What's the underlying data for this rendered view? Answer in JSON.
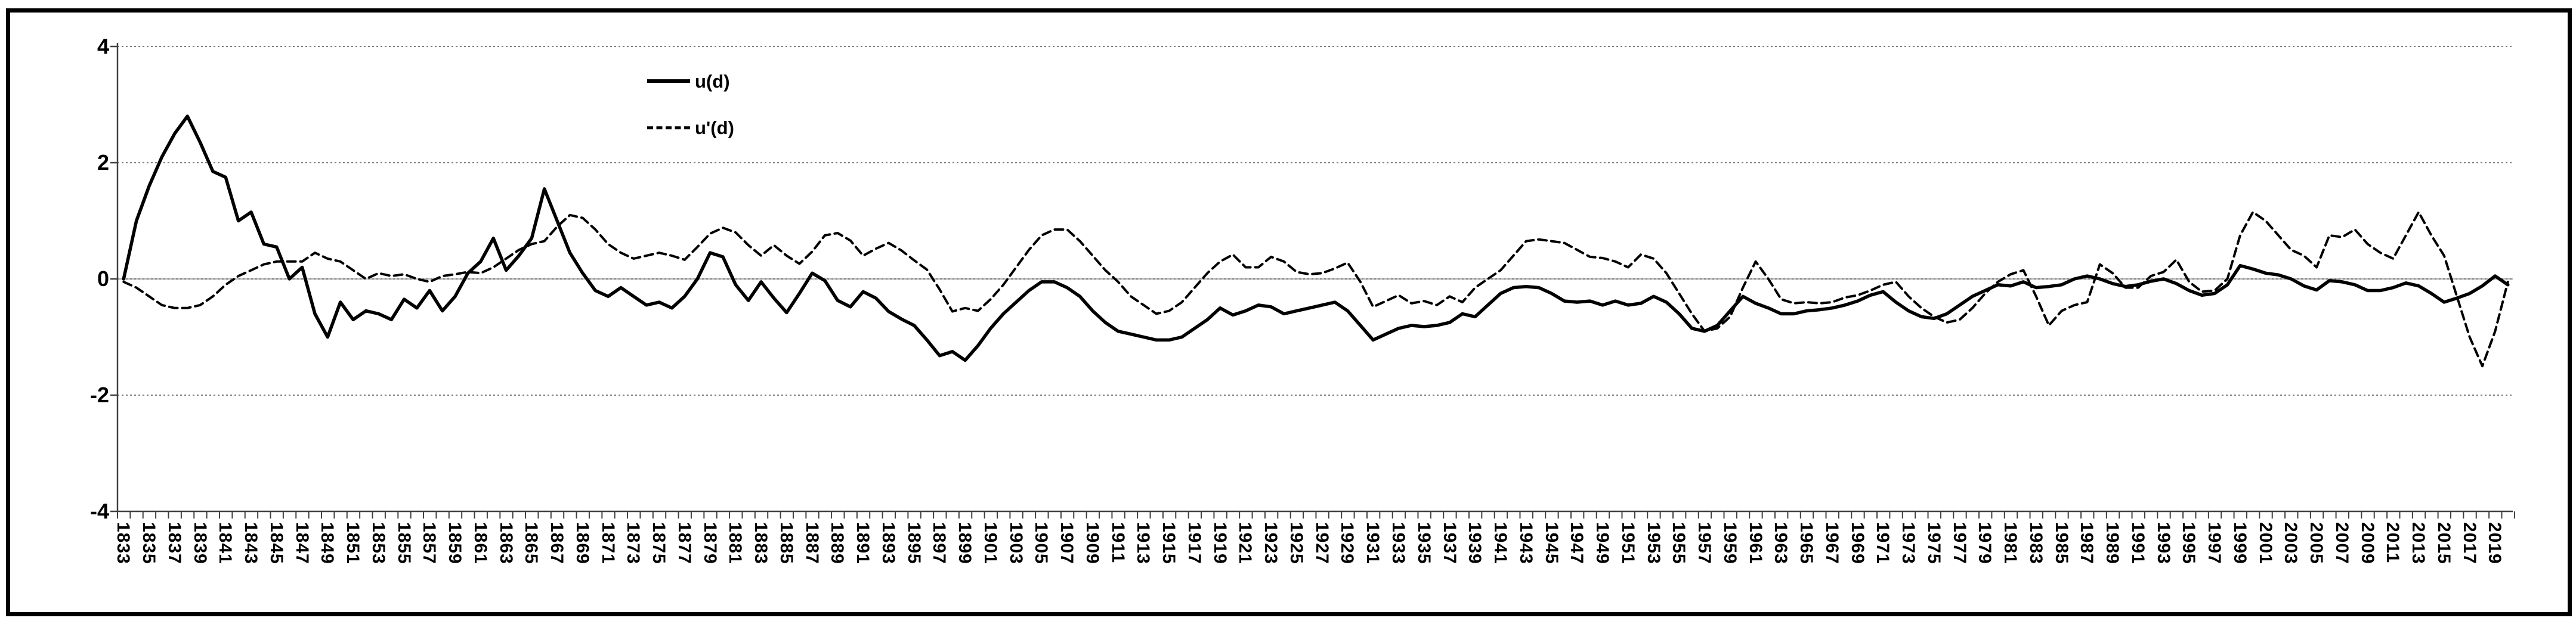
{
  "chart_data": {
    "type": "line",
    "title": "",
    "xlabel": "",
    "ylabel": "",
    "ylim": [
      -4,
      4
    ],
    "y_ticks": [
      4,
      2,
      0,
      -2,
      -4
    ],
    "y_gridlines": [
      4,
      2,
      0,
      -2
    ],
    "grid": "horizontal-dotted",
    "legend_position": "top-center-left",
    "x_start": 1833,
    "x_end": 2020,
    "x_step": 1,
    "x_tick_labels": [
      "1833",
      "1835",
      "1837",
      "1839",
      "1841",
      "1843",
      "1845",
      "1847",
      "1849",
      "1851",
      "1853",
      "1855",
      "1857",
      "1859",
      "1861",
      "1863",
      "1865",
      "1867",
      "1869",
      "1871",
      "1873",
      "1875",
      "1877",
      "1879",
      "1881",
      "1883",
      "1885",
      "1887",
      "1889",
      "1891",
      "1893",
      "1895",
      "1897",
      "1899",
      "1901",
      "1903",
      "1905",
      "1907",
      "1909",
      "1911",
      "1913",
      "1915",
      "1917",
      "1919",
      "1921",
      "1923",
      "1925",
      "1927",
      "1929",
      "1931",
      "1933",
      "1935",
      "1937",
      "1939",
      "1941",
      "1943",
      "1945",
      "1947",
      "1949",
      "1951",
      "1953",
      "1955",
      "1957",
      "1959",
      "1961",
      "1963",
      "1965",
      "1967",
      "1969",
      "1971",
      "1973",
      "1975",
      "1977",
      "1979",
      "1981",
      "1983",
      "1985",
      "1987",
      "1989",
      "1991",
      "1993",
      "1995",
      "1997",
      "1999",
      "2001",
      "2003",
      "2005",
      "2007",
      "2009",
      "2011",
      "2013",
      "2015",
      "2017",
      "2019"
    ],
    "series": [
      {
        "name": "u(d)",
        "style": "solid",
        "color": "#000000",
        "values": [
          0.0,
          1.0,
          1.6,
          2.1,
          2.5,
          2.8,
          2.35,
          1.85,
          1.75,
          1.0,
          1.15,
          0.6,
          0.55,
          0.0,
          0.2,
          -0.6,
          -1.0,
          -0.4,
          -0.7,
          -0.55,
          -0.6,
          -0.7,
          -0.35,
          -0.5,
          -0.2,
          -0.55,
          -0.3,
          0.1,
          0.3,
          0.7,
          0.15,
          0.4,
          0.7,
          1.55,
          1.0,
          0.45,
          0.1,
          -0.2,
          -0.3,
          -0.15,
          -0.3,
          -0.45,
          -0.4,
          -0.5,
          -0.3,
          0.0,
          0.45,
          0.38,
          -0.1,
          -0.37,
          -0.05,
          -0.33,
          -0.58,
          -0.25,
          0.1,
          -0.03,
          -0.37,
          -0.48,
          -0.22,
          -0.33,
          -0.56,
          -0.69,
          -0.8,
          -1.05,
          -1.32,
          -1.25,
          -1.4,
          -1.15,
          -0.85,
          -0.6,
          -0.4,
          -0.2,
          -0.05,
          -0.05,
          -0.15,
          -0.3,
          -0.55,
          -0.75,
          -0.9,
          -0.95,
          -1.0,
          -1.05,
          -1.05,
          -1.0,
          -0.85,
          -0.7,
          -0.5,
          -0.62,
          -0.55,
          -0.45,
          -0.48,
          -0.6,
          -0.55,
          -0.5,
          -0.45,
          -0.4,
          -0.55,
          -0.8,
          -1.05,
          -0.95,
          -0.85,
          -0.8,
          -0.82,
          -0.8,
          -0.75,
          -0.6,
          -0.65,
          -0.45,
          -0.25,
          -0.15,
          -0.13,
          -0.15,
          -0.25,
          -0.38,
          -0.4,
          -0.38,
          -0.45,
          -0.38,
          -0.45,
          -0.42,
          -0.3,
          -0.4,
          -0.6,
          -0.85,
          -0.9,
          -0.8,
          -0.55,
          -0.3,
          -0.42,
          -0.5,
          -0.6,
          -0.6,
          -0.55,
          -0.53,
          -0.5,
          -0.45,
          -0.38,
          -0.28,
          -0.22,
          -0.4,
          -0.55,
          -0.65,
          -0.68,
          -0.6,
          -0.45,
          -0.3,
          -0.2,
          -0.1,
          -0.12,
          -0.05,
          -0.15,
          -0.13,
          -0.1,
          0.0,
          0.05,
          0.0,
          -0.08,
          -0.13,
          -0.1,
          -0.04,
          0.0,
          -0.08,
          -0.2,
          -0.28,
          -0.25,
          -0.1,
          0.23,
          0.17,
          0.1,
          0.07,
          0.0,
          -0.12,
          -0.19,
          -0.03,
          -0.05,
          -0.1,
          -0.2,
          -0.2,
          -0.15,
          -0.07,
          -0.12,
          -0.25,
          -0.4,
          -0.33,
          -0.25,
          -0.12,
          0.05,
          -0.1
        ]
      },
      {
        "name": "u'(d)",
        "style": "dashed",
        "color": "#000000",
        "values": [
          -0.05,
          -0.15,
          -0.3,
          -0.45,
          -0.5,
          -0.5,
          -0.45,
          -0.3,
          -0.1,
          0.05,
          0.15,
          0.25,
          0.3,
          0.3,
          0.3,
          0.45,
          0.35,
          0.3,
          0.15,
          0.0,
          0.1,
          0.05,
          0.08,
          0.0,
          -0.05,
          0.05,
          0.08,
          0.12,
          0.1,
          0.2,
          0.35,
          0.5,
          0.6,
          0.65,
          0.9,
          1.1,
          1.05,
          0.85,
          0.6,
          0.45,
          0.35,
          0.4,
          0.45,
          0.4,
          0.33,
          0.55,
          0.78,
          0.88,
          0.8,
          0.58,
          0.4,
          0.58,
          0.4,
          0.26,
          0.47,
          0.75,
          0.79,
          0.66,
          0.4,
          0.52,
          0.62,
          0.49,
          0.32,
          0.16,
          -0.18,
          -0.56,
          -0.5,
          -0.55,
          -0.35,
          -0.1,
          0.2,
          0.5,
          0.75,
          0.85,
          0.85,
          0.65,
          0.4,
          0.15,
          -0.05,
          -0.3,
          -0.45,
          -0.6,
          -0.55,
          -0.4,
          -0.15,
          0.1,
          0.3,
          0.42,
          0.2,
          0.2,
          0.38,
          0.3,
          0.12,
          0.08,
          0.1,
          0.18,
          0.28,
          -0.05,
          -0.48,
          -0.38,
          -0.28,
          -0.42,
          -0.38,
          -0.45,
          -0.3,
          -0.4,
          -0.15,
          0.0,
          0.15,
          0.4,
          0.65,
          0.68,
          0.65,
          0.62,
          0.5,
          0.38,
          0.36,
          0.3,
          0.2,
          0.42,
          0.35,
          0.1,
          -0.25,
          -0.6,
          -0.9,
          -0.85,
          -0.65,
          -0.15,
          0.3,
          0.0,
          -0.35,
          -0.42,
          -0.4,
          -0.42,
          -0.4,
          -0.32,
          -0.28,
          -0.2,
          -0.1,
          -0.05,
          -0.3,
          -0.5,
          -0.65,
          -0.75,
          -0.7,
          -0.5,
          -0.25,
          -0.05,
          0.08,
          0.15,
          -0.3,
          -0.8,
          -0.55,
          -0.45,
          -0.4,
          0.25,
          0.1,
          -0.15,
          -0.15,
          0.05,
          0.12,
          0.33,
          -0.05,
          -0.22,
          -0.2,
          0.0,
          0.75,
          1.15,
          1.0,
          0.75,
          0.5,
          0.4,
          0.2,
          0.75,
          0.72,
          0.85,
          0.6,
          0.45,
          0.35,
          0.75,
          1.15,
          0.75,
          0.4,
          -0.3,
          -1.0,
          -1.5,
          -0.9,
          -0.05
        ]
      }
    ]
  },
  "colors": {
    "background": "#ffffff",
    "frame_border": "#000000",
    "gridline": "#7f7f7f",
    "zero_line": "#b8b8b8",
    "axis": "#404040",
    "series": "#000000"
  }
}
